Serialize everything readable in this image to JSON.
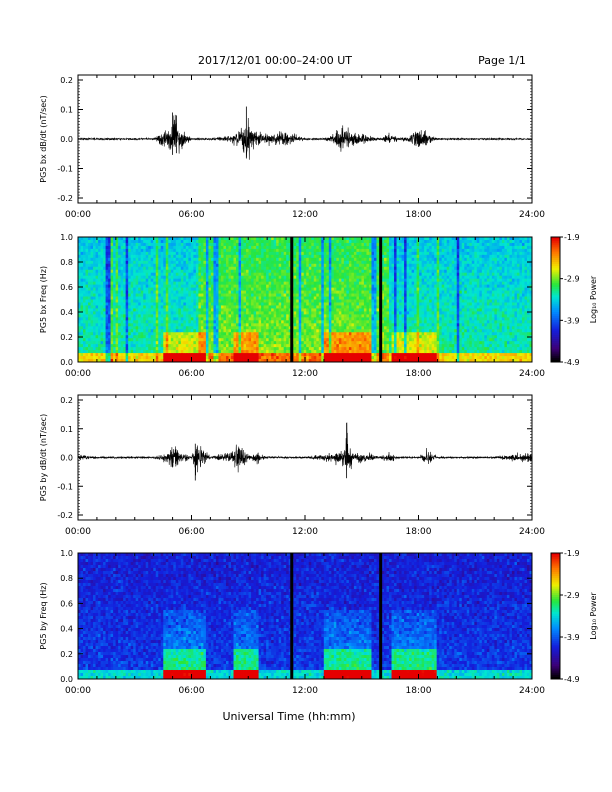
{
  "header": {
    "title": "2017/12/01  00:00–24:00 UT",
    "page": "Page 1/1"
  },
  "footer": {
    "xlabel": "Universal Time (hh:mm)"
  },
  "colorbar": {
    "ticks": [
      "-1.9",
      "-2.9",
      "-3.9",
      "-4.9"
    ],
    "label": "Log₁₀ Power",
    "range": [
      -4.9,
      -1.9
    ]
  },
  "chart_data": [
    {
      "type": "line",
      "ylabel": "PG5 bx dB/dt (nT/sec)",
      "xticks": [
        "00:00",
        "06:00",
        "12:00",
        "18:00",
        "24:00"
      ],
      "yticks": [
        "0.2",
        "0.1",
        "0.0",
        "-0.1",
        "-0.2"
      ],
      "xlim": [
        0,
        24
      ],
      "ylim": [
        -0.2,
        0.2
      ],
      "series": [
        {
          "x": [
            0,
            1,
            2,
            3,
            4,
            4.8,
            5.0,
            5.2,
            5.5,
            6.0,
            7.0,
            8.0,
            8.6,
            8.9,
            9.2,
            10,
            11,
            12,
            13,
            13.5,
            14.0,
            14.5,
            15,
            16,
            16.5,
            17,
            17.5,
            18.0,
            18.5,
            19,
            20,
            21,
            22,
            23,
            24
          ],
          "y": [
            0.0,
            0.0,
            0.0,
            0.0,
            0.0,
            0.05,
            0.09,
            0.08,
            0.04,
            0.0,
            0.0,
            0.01,
            0.04,
            0.11,
            0.04,
            0.02,
            0.03,
            0.0,
            0.0,
            0.02,
            0.06,
            0.03,
            0.02,
            0.0,
            0.02,
            0.0,
            0.01,
            0.05,
            0.02,
            0.0,
            0.0,
            0.0,
            0.0,
            0.0,
            0.0
          ]
        }
      ]
    },
    {
      "type": "heatmap",
      "ylabel": "PG5 bx Freq (Hz)",
      "xticks": [
        "00:00",
        "06:00",
        "12:00",
        "18:00",
        "24:00"
      ],
      "yticks": [
        "1.0",
        "0.8",
        "0.6",
        "0.4",
        "0.2",
        "0.0"
      ],
      "xlim": [
        0,
        24
      ],
      "ylim": [
        0,
        1.0
      ],
      "data_gaps_hours": [
        11.3,
        16.0
      ]
    },
    {
      "type": "line",
      "ylabel": "PG5 by dB/dt (nT/sec)",
      "xticks": [
        "00:00",
        "06:00",
        "12:00",
        "18:00",
        "24:00"
      ],
      "yticks": [
        "0.2",
        "0.1",
        "0.0",
        "-0.1",
        "-0.2"
      ],
      "xlim": [
        0,
        24
      ],
      "ylim": [
        -0.2,
        0.2
      ],
      "series": [
        {
          "x": [
            0,
            1,
            2,
            3,
            4,
            4.8,
            5.0,
            5.5,
            6.0,
            6.2,
            7,
            8.0,
            8.5,
            9.0,
            9.5,
            10,
            11,
            12,
            13,
            13.5,
            14.0,
            14.2,
            14.5,
            15,
            16,
            16.5,
            17,
            18,
            18.5,
            19,
            20,
            21,
            22,
            23,
            24
          ],
          "y": [
            0.01,
            0.0,
            0.0,
            0.0,
            0.0,
            0.02,
            0.06,
            0.02,
            0.0,
            -0.08,
            0.0,
            0.02,
            0.07,
            0.01,
            0.02,
            0.0,
            0.0,
            0.0,
            0.01,
            0.02,
            0.03,
            0.12,
            0.02,
            0.02,
            0.0,
            0.02,
            0.0,
            0.0,
            0.03,
            0.0,
            0.0,
            0.0,
            0.0,
            0.01,
            0.02
          ]
        }
      ]
    },
    {
      "type": "heatmap",
      "ylabel": "PG5 by Freq (Hz)",
      "xticks": [
        "00:00",
        "06:00",
        "12:00",
        "18:00",
        "24:00"
      ],
      "yticks": [
        "1.0",
        "0.8",
        "0.6",
        "0.4",
        "0.2",
        "0.0"
      ],
      "xlim": [
        0,
        24
      ],
      "ylim": [
        0,
        1.0
      ],
      "data_gaps_hours": [
        11.3,
        16.0
      ]
    }
  ]
}
